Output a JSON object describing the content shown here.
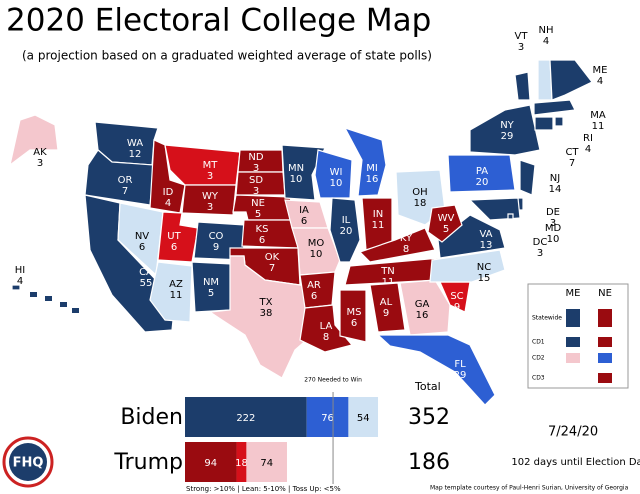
{
  "header": {
    "title": "2020 Electoral College Map",
    "subtitle": "(a projection based on a graduated weighted average of state polls)"
  },
  "colors": {
    "strong_d": "#1c3d6b",
    "lean_d": "#2d5fd3",
    "toss_d": "#cfe2f3",
    "toss_r": "#f4c7cd",
    "lean_r": "#d6101a",
    "strong_r": "#9a0b10"
  },
  "states": [
    {
      "abbr": "WA",
      "ev": 12,
      "color": "#1c3d6b"
    },
    {
      "abbr": "OR",
      "ev": 7,
      "color": "#1c3d6b"
    },
    {
      "abbr": "CA",
      "ev": 55,
      "color": "#1c3d6b"
    },
    {
      "abbr": "NV",
      "ev": 6,
      "color": "#cfe2f3"
    },
    {
      "abbr": "ID",
      "ev": 4,
      "color": "#9a0b10"
    },
    {
      "abbr": "MT",
      "ev": 3,
      "color": "#d6101a"
    },
    {
      "abbr": "WY",
      "ev": 3,
      "color": "#9a0b10"
    },
    {
      "abbr": "UT",
      "ev": 6,
      "color": "#d6101a"
    },
    {
      "abbr": "CO",
      "ev": 9,
      "color": "#1c3d6b"
    },
    {
      "abbr": "AZ",
      "ev": 11,
      "color": "#cfe2f3"
    },
    {
      "abbr": "NM",
      "ev": 5,
      "color": "#1c3d6b"
    },
    {
      "abbr": "ND",
      "ev": 3,
      "color": "#9a0b10"
    },
    {
      "abbr": "SD",
      "ev": 3,
      "color": "#9a0b10"
    },
    {
      "abbr": "NE",
      "ev": 5,
      "color": "#9a0b10"
    },
    {
      "abbr": "KS",
      "ev": 6,
      "color": "#9a0b10"
    },
    {
      "abbr": "OK",
      "ev": 7,
      "color": "#9a0b10"
    },
    {
      "abbr": "TX",
      "ev": 38,
      "color": "#f4c7cd"
    },
    {
      "abbr": "MN",
      "ev": 10,
      "color": "#1c3d6b"
    },
    {
      "abbr": "IA",
      "ev": 6,
      "color": "#f4c7cd"
    },
    {
      "abbr": "MO",
      "ev": 10,
      "color": "#f4c7cd"
    },
    {
      "abbr": "AR",
      "ev": 6,
      "color": "#9a0b10"
    },
    {
      "abbr": "LA",
      "ev": 8,
      "color": "#9a0b10"
    },
    {
      "abbr": "WI",
      "ev": 10,
      "color": "#2d5fd3"
    },
    {
      "abbr": "IL",
      "ev": 20,
      "color": "#1c3d6b"
    },
    {
      "abbr": "MI",
      "ev": 16,
      "color": "#2d5fd3"
    },
    {
      "abbr": "IN",
      "ev": 11,
      "color": "#9a0b10"
    },
    {
      "abbr": "OH",
      "ev": 18,
      "color": "#cfe2f3"
    },
    {
      "abbr": "KY",
      "ev": 8,
      "color": "#9a0b10"
    },
    {
      "abbr": "TN",
      "ev": 11,
      "color": "#9a0b10"
    },
    {
      "abbr": "MS",
      "ev": 6,
      "color": "#9a0b10"
    },
    {
      "abbr": "AL",
      "ev": 9,
      "color": "#9a0b10"
    },
    {
      "abbr": "GA",
      "ev": 16,
      "color": "#f4c7cd"
    },
    {
      "abbr": "FL",
      "ev": 29,
      "color": "#2d5fd3"
    },
    {
      "abbr": "SC",
      "ev": 9,
      "color": "#d6101a"
    },
    {
      "abbr": "NC",
      "ev": 15,
      "color": "#cfe2f3"
    },
    {
      "abbr": "VA",
      "ev": 13,
      "color": "#1c3d6b"
    },
    {
      "abbr": "WV",
      "ev": 5,
      "color": "#9a0b10"
    },
    {
      "abbr": "PA",
      "ev": 20,
      "color": "#2d5fd3"
    },
    {
      "abbr": "NY",
      "ev": 29,
      "color": "#1c3d6b"
    },
    {
      "abbr": "NJ",
      "ev": 14,
      "color": "#1c3d6b"
    },
    {
      "abbr": "DE",
      "ev": 3,
      "color": "#1c3d6b"
    },
    {
      "abbr": "MD",
      "ev": 10,
      "color": "#1c3d6b"
    },
    {
      "abbr": "DC",
      "ev": 3,
      "color": "#1c3d6b"
    },
    {
      "abbr": "VT",
      "ev": 3,
      "color": "#1c3d6b"
    },
    {
      "abbr": "NH",
      "ev": 4,
      "color": "#cfe2f3"
    },
    {
      "abbr": "ME",
      "ev": 4,
      "color": "#1c3d6b"
    },
    {
      "abbr": "MA",
      "ev": 11,
      "color": "#1c3d6b"
    },
    {
      "abbr": "RI",
      "ev": 4,
      "color": "#1c3d6b"
    },
    {
      "abbr": "CT",
      "ev": 7,
      "color": "#1c3d6b"
    },
    {
      "abbr": "AK",
      "ev": 3,
      "color": "#f4c7cd"
    },
    {
      "abbr": "HI",
      "ev": 4,
      "color": "#1c3d6b"
    }
  ],
  "legend": {
    "columns": [
      "ME",
      "NE"
    ],
    "rows": [
      {
        "label": "Statewide",
        "colors": [
          "#1c3d6b",
          "#9a0b10"
        ]
      },
      {
        "label": "CD1",
        "colors": [
          "#1c3d6b",
          "#9a0b10"
        ]
      },
      {
        "label": "CD2",
        "colors": [
          "#f4c7cd",
          "#2d5fd3"
        ]
      },
      {
        "label": "CD3",
        "colors": [
          null,
          "#9a0b10"
        ]
      }
    ]
  },
  "tally": {
    "xlim": [
      0,
      538
    ],
    "needed": 270,
    "needed_label": "270 Needed to Win",
    "total_label": "Total",
    "candidates": [
      {
        "name": "Biden",
        "total": 352,
        "segments": [
          {
            "value": 222,
            "color": "#1c3d6b"
          },
          {
            "value": 76,
            "color": "#2d5fd3"
          },
          {
            "value": 54,
            "color": "#cfe2f3"
          }
        ]
      },
      {
        "name": "Trump",
        "total": 186,
        "segments": [
          {
            "value": 94,
            "color": "#9a0b10"
          },
          {
            "value": 18,
            "color": "#d6101a"
          },
          {
            "value": 74,
            "color": "#f4c7cd"
          }
        ]
      }
    ],
    "key": "Strong: >10% | Lean: 5-10% | Toss Up: <5%"
  },
  "date": "7/24/20",
  "countdown": "102 days until Election Day",
  "credit": "Map template courtesy of Paul-Henri Surian, University of Georgia",
  "logo": "FHQ"
}
